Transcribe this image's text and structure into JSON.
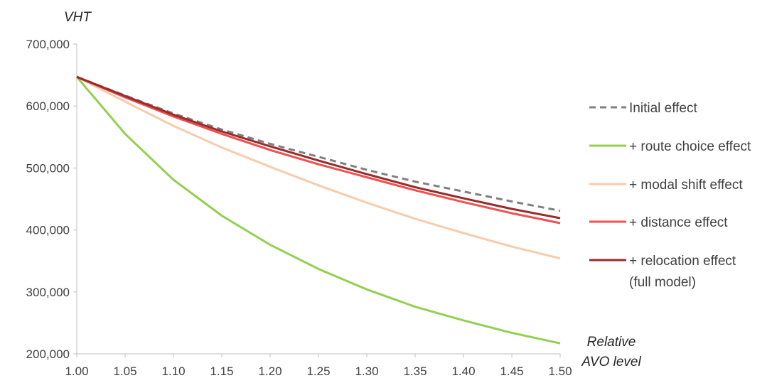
{
  "chart_data": {
    "type": "line",
    "title": "",
    "ylabel": "VHT",
    "xlabel": [
      "Relative",
      "AVO level"
    ],
    "x": [
      1.0,
      1.05,
      1.1,
      1.15,
      1.2,
      1.25,
      1.3,
      1.35,
      1.4,
      1.45,
      1.5
    ],
    "x_tick_labels": [
      "1.00",
      "1.05",
      "1.10",
      "1.15",
      "1.20",
      "1.25",
      "1.30",
      "1.35",
      "1.40",
      "1.45",
      "1.50"
    ],
    "y_ticks": [
      200000,
      300000,
      400000,
      500000,
      600000,
      700000
    ],
    "y_tick_labels": [
      "200,000",
      "300,000",
      "400,000",
      "500,000",
      "600,000",
      "700,000"
    ],
    "xlim": [
      1.0,
      1.5
    ],
    "ylim": [
      200000,
      700000
    ],
    "grid": false,
    "legend_position": "right",
    "series": [
      {
        "name": "Initial effect",
        "color": "#808080",
        "dash": true,
        "values": [
          647000,
          617000,
          588000,
          562000,
          539000,
          518000,
          497000,
          478000,
          462000,
          446000,
          431000
        ]
      },
      {
        "name": "+ route choice effect",
        "color": "#92D050",
        "dash": false,
        "values": [
          647000,
          555000,
          481000,
          423000,
          376000,
          337000,
          304000,
          276000,
          254000,
          234000,
          217000
        ]
      },
      {
        "name": "+ modal shift effect",
        "color": "#F8CBAD",
        "dash": false,
        "values": [
          647000,
          607000,
          568000,
          533000,
          502000,
          472000,
          444000,
          418000,
          395000,
          373000,
          354000
        ]
      },
      {
        "name": "+ distance effect",
        "color": "#F05050",
        "dash": false,
        "values": [
          647000,
          614000,
          583000,
          555000,
          529000,
          506000,
          485000,
          464000,
          445000,
          427000,
          411000
        ]
      },
      {
        "name": "+ relocation effect (full model)",
        "legend_lines": [
          "+ relocation effect",
          "(full model)"
        ],
        "color": "#9B2A2A",
        "dash": false,
        "values": [
          647000,
          616000,
          586000,
          559000,
          535000,
          512000,
          490000,
          469000,
          451000,
          434000,
          419000
        ]
      }
    ]
  }
}
